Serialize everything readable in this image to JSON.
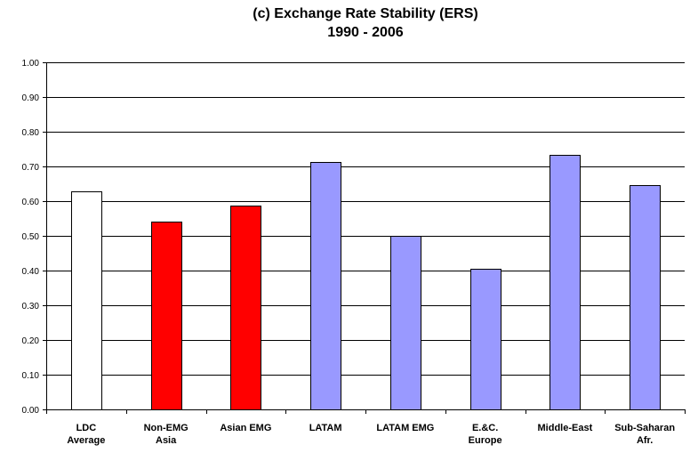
{
  "chart_data": {
    "type": "bar",
    "title": [
      "(c) Exchange Rate Stability (ERS)",
      "1990 - 2006"
    ],
    "xlabel": "",
    "ylabel": "",
    "ylim": [
      0,
      1.0
    ],
    "yticks": [
      "0.00",
      "0.10",
      "0.20",
      "0.30",
      "0.40",
      "0.50",
      "0.60",
      "0.70",
      "0.80",
      "0.90",
      "1.00"
    ],
    "grid": true,
    "legend": "none",
    "categories": [
      [
        "LDC",
        "Average"
      ],
      [
        "Non-EMG",
        "Asia"
      ],
      [
        "Asian EMG"
      ],
      [
        "LATAM"
      ],
      [
        "LATAM EMG"
      ],
      [
        "E.&C.",
        "Europe"
      ],
      [
        "Middle-East"
      ],
      [
        "Sub-Saharan",
        "Afr."
      ]
    ],
    "values": [
      0.627,
      0.54,
      0.587,
      0.714,
      0.499,
      0.406,
      0.733,
      0.647
    ],
    "bar_colors": [
      "#ffffff",
      "#ff0000",
      "#ff0000",
      "#9999ff",
      "#9999ff",
      "#9999ff",
      "#9999ff",
      "#9999ff"
    ]
  }
}
